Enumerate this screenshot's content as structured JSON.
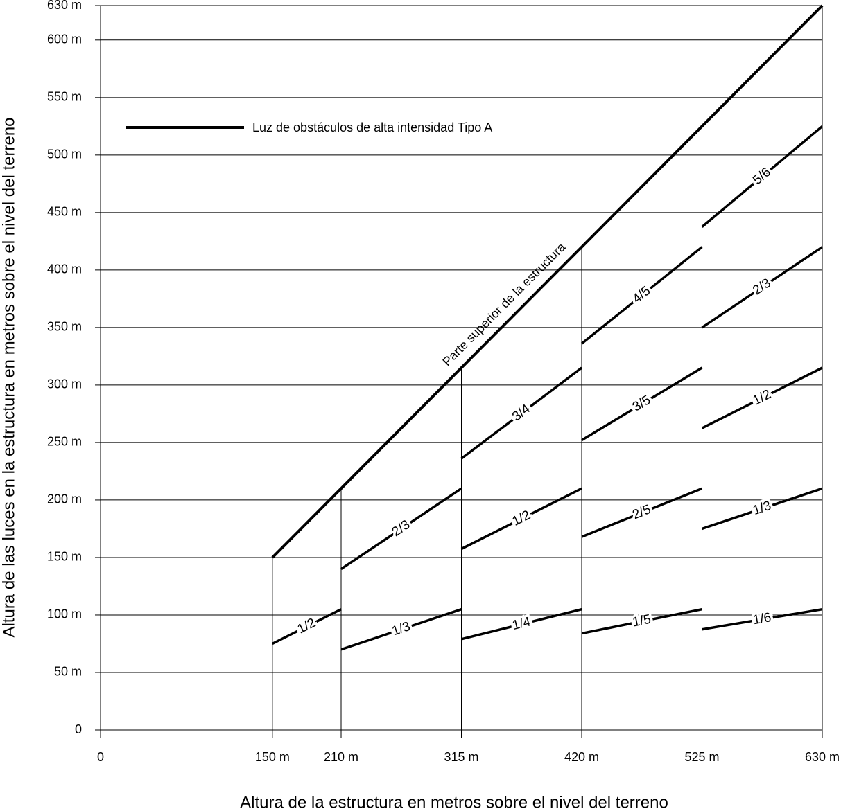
{
  "chart_data": {
    "type": "line",
    "xlabel": "Altura de la estructura en metros sobre el nivel del terreno",
    "ylabel": "Altura de las luces en la estructura en metros sobre el nivel del terreno",
    "legend": "Luz de obstáculos de alta intensidad Tipo A",
    "color": "#000000",
    "grid": true,
    "xlim": [
      0,
      630
    ],
    "ylim": [
      0,
      630
    ],
    "xticks": [
      0,
      {
        "value": 150,
        "label": "150 m"
      },
      {
        "value": 210,
        "label": "210 m"
      },
      {
        "value": 315,
        "label": "315 m"
      },
      {
        "value": 420,
        "label": "420 m"
      },
      {
        "value": 525,
        "label": "525 m"
      },
      {
        "value": 630,
        "label": "630 m"
      }
    ],
    "yticks": [
      0,
      {
        "value": 50,
        "label": "50 m"
      },
      {
        "value": 100,
        "label": "100 m"
      },
      {
        "value": 150,
        "label": "150 m"
      },
      {
        "value": 200,
        "label": "200 m"
      },
      {
        "value": 250,
        "label": "250 m"
      },
      {
        "value": 300,
        "label": "300 m"
      },
      {
        "value": 350,
        "label": "350 m"
      },
      {
        "value": 400,
        "label": "400 m"
      },
      {
        "value": 450,
        "label": "450 m"
      },
      {
        "value": 500,
        "label": "500 m"
      },
      {
        "value": 550,
        "label": "550 m"
      },
      {
        "value": 600,
        "label": "600 m"
      },
      {
        "value": 630,
        "label": "630 m"
      }
    ],
    "series": [
      {
        "name": "Parte superior de la estructura",
        "x": [
          150,
          630
        ],
        "values": [
          150,
          630
        ]
      },
      {
        "name": "1/2",
        "x": [
          150,
          210
        ],
        "values": [
          75,
          105
        ]
      },
      {
        "name": "2/3",
        "x": [
          210,
          315
        ],
        "values": [
          140,
          210
        ]
      },
      {
        "name": "1/3",
        "x": [
          210,
          315
        ],
        "values": [
          70,
          105
        ]
      },
      {
        "name": "3/4",
        "x": [
          315,
          420
        ],
        "values": [
          236,
          315
        ]
      },
      {
        "name": "1/2",
        "x": [
          315,
          420
        ],
        "values": [
          157.5,
          210
        ]
      },
      {
        "name": "1/4",
        "x": [
          315,
          420
        ],
        "values": [
          79,
          105
        ]
      },
      {
        "name": "4/5",
        "x": [
          420,
          525
        ],
        "values": [
          336,
          420
        ]
      },
      {
        "name": "3/5",
        "x": [
          420,
          525
        ],
        "values": [
          252,
          315
        ]
      },
      {
        "name": "2/5",
        "x": [
          420,
          525
        ],
        "values": [
          168,
          210
        ]
      },
      {
        "name": "1/5",
        "x": [
          420,
          525
        ],
        "values": [
          84,
          105
        ]
      },
      {
        "name": "5/6",
        "x": [
          525,
          630
        ],
        "values": [
          437.5,
          525
        ]
      },
      {
        "name": "2/3",
        "x": [
          525,
          630
        ],
        "values": [
          350,
          420
        ]
      },
      {
        "name": "1/2",
        "x": [
          525,
          630
        ],
        "values": [
          262.5,
          315
        ]
      },
      {
        "name": "1/3",
        "x": [
          525,
          630
        ],
        "values": [
          175,
          210
        ]
      },
      {
        "name": "1/6",
        "x": [
          525,
          630
        ],
        "values": [
          87.5,
          105
        ]
      }
    ]
  }
}
